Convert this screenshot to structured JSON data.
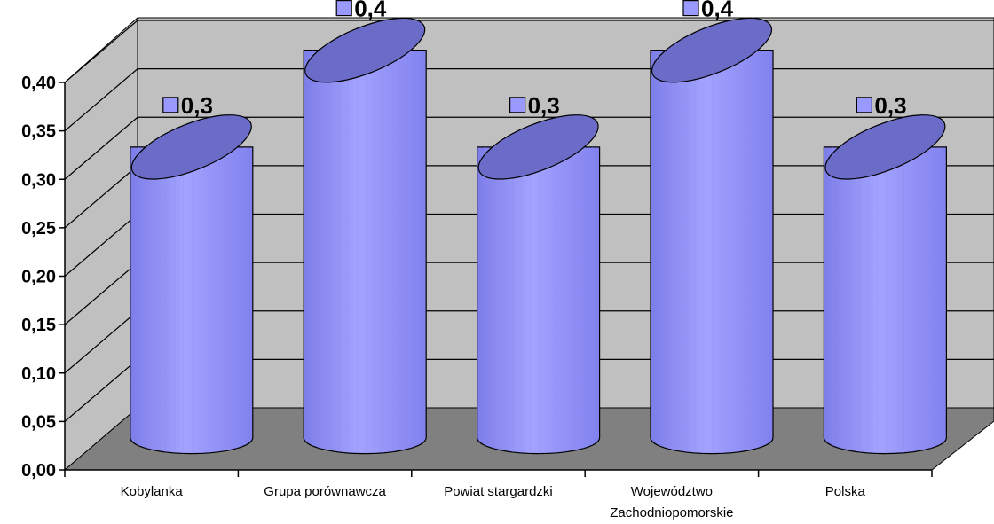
{
  "chart_data": {
    "type": "bar",
    "style": "3d-cylinder",
    "categories": [
      [
        "Kobylanka"
      ],
      [
        "Grupa porównawcza"
      ],
      [
        "Powiat stargardzki"
      ],
      [
        "Województwo",
        "Zachodniopomorskie"
      ],
      [
        "Polska"
      ]
    ],
    "values": [
      0.3,
      0.4,
      0.3,
      0.4,
      0.3
    ],
    "data_labels": [
      "0,3",
      "0,4",
      "0,3",
      "0,4",
      "0,3"
    ],
    "y_ticks": [
      {
        "value": 0.0,
        "label": "0,00"
      },
      {
        "value": 0.05,
        "label": "0,05"
      },
      {
        "value": 0.1,
        "label": "0,10"
      },
      {
        "value": 0.15,
        "label": "0,15"
      },
      {
        "value": 0.2,
        "label": "0,20"
      },
      {
        "value": 0.25,
        "label": "0,25"
      },
      {
        "value": 0.3,
        "label": "0,30"
      },
      {
        "value": 0.35,
        "label": "0,35"
      },
      {
        "value": 0.4,
        "label": "0,40"
      }
    ],
    "ylim": [
      0,
      0.4
    ],
    "grid": true,
    "legend": "none",
    "title": "",
    "xlabel": "",
    "ylabel": "",
    "colors": {
      "bar_body": "#9999ff",
      "bar_top": "#6b6bc8",
      "wall": "#c0c0c0",
      "floor": "#808080",
      "marker": "#9999ff"
    }
  }
}
